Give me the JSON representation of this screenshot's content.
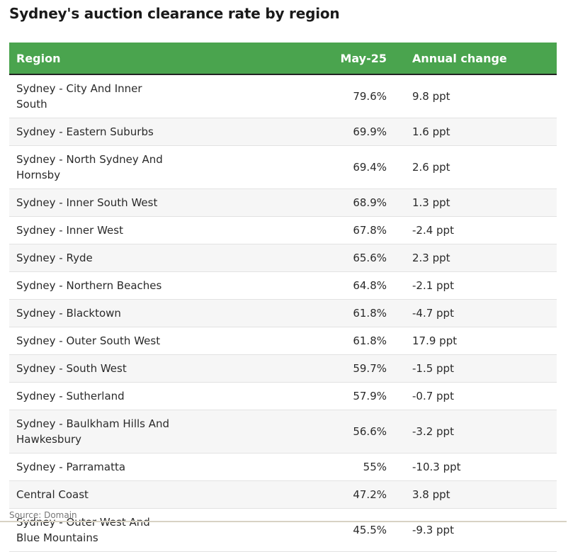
{
  "chart_data": {
    "type": "table",
    "title": "Sydney's auction clearance rate by region",
    "columns": [
      "Region",
      "May-25",
      "Annual change"
    ],
    "rows": [
      {
        "region": "Sydney - City And Inner South",
        "may": "79.6%",
        "change": "9.8 ppt"
      },
      {
        "region": "Sydney - Eastern Suburbs",
        "may": "69.9%",
        "change": "1.6 ppt"
      },
      {
        "region": "Sydney - North Sydney And Hornsby",
        "may": "69.4%",
        "change": "2.6 ppt"
      },
      {
        "region": "Sydney - Inner South West",
        "may": "68.9%",
        "change": "1.3 ppt"
      },
      {
        "region": "Sydney - Inner West",
        "may": "67.8%",
        "change": "-2.4 ppt"
      },
      {
        "region": "Sydney - Ryde",
        "may": "65.6%",
        "change": "2.3 ppt"
      },
      {
        "region": "Sydney - Northern Beaches",
        "may": "64.8%",
        "change": "-2.1 ppt"
      },
      {
        "region": "Sydney - Blacktown",
        "may": "61.8%",
        "change": "-4.7 ppt"
      },
      {
        "region": "Sydney - Outer South West",
        "may": "61.8%",
        "change": "17.9 ppt"
      },
      {
        "region": "Sydney - South West",
        "may": "59.7%",
        "change": "-1.5 ppt"
      },
      {
        "region": "Sydney - Sutherland",
        "may": "57.9%",
        "change": "-0.7 ppt"
      },
      {
        "region": "Sydney - Baulkham Hills And Hawkesbury",
        "may": "56.6%",
        "change": "-3.2 ppt"
      },
      {
        "region": "Sydney - Parramatta",
        "may": "55%",
        "change": "-10.3 ppt"
      },
      {
        "region": "Central Coast",
        "may": "47.2%",
        "change": "3.8 ppt"
      },
      {
        "region": "Sydney - Outer West And Blue Mountains",
        "may": "45.5%",
        "change": "-9.3 ppt"
      }
    ],
    "source": "Source: Domain"
  },
  "colors": {
    "header_bg": "#4aa44e",
    "header_text": "#ffffff",
    "row_alt_bg": "#f6f6f6"
  }
}
